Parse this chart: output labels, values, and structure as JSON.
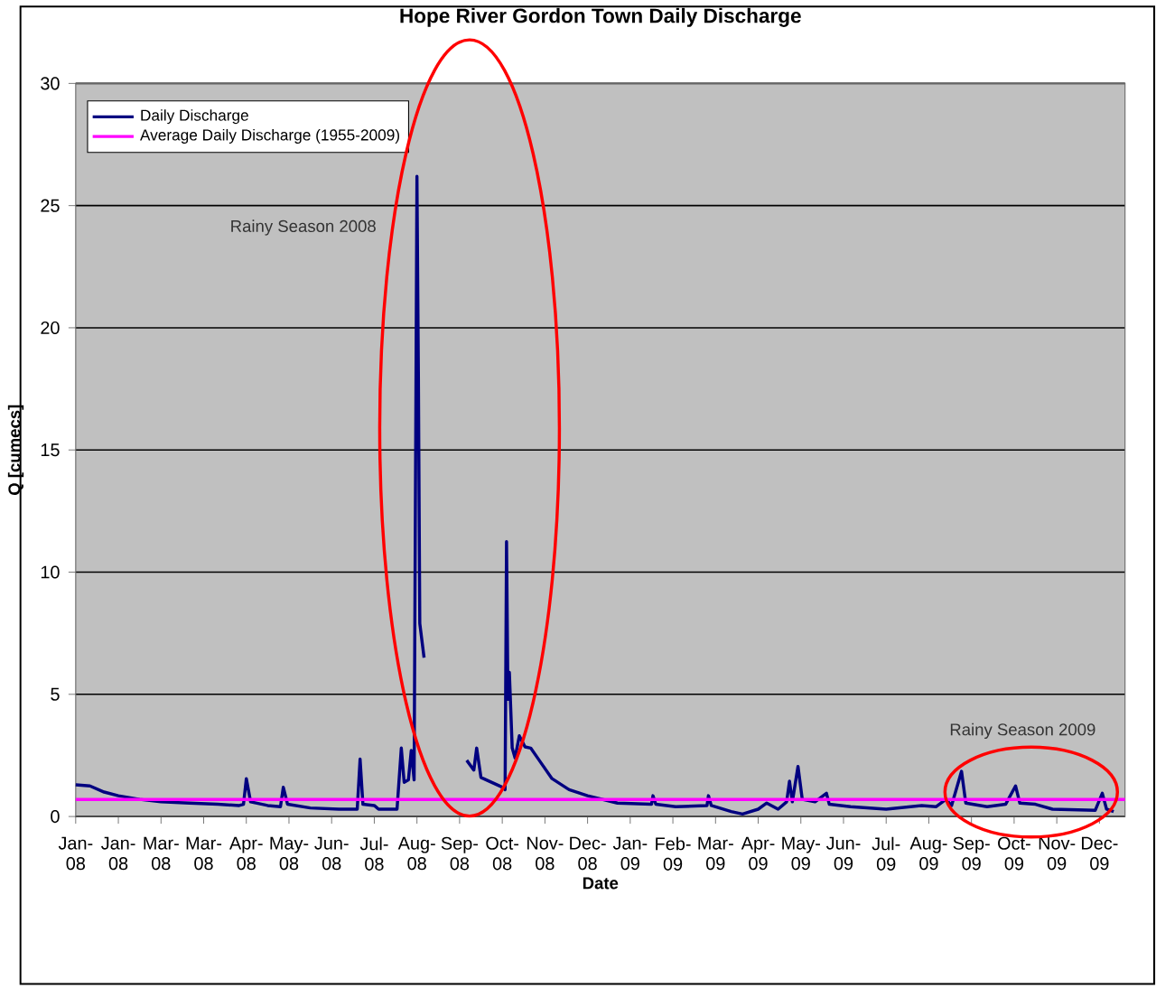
{
  "chart_data": {
    "type": "line",
    "title": "Hope River Gordon Town Daily Discharge",
    "xlabel": "Date",
    "ylabel": "Q [cumecs]",
    "annotations": [
      "Rainy Season 2008",
      "Rainy Season 2009"
    ],
    "series": [
      {
        "name": "Daily Discharge",
        "color": "#000080",
        "x": [
          "2008-01-01",
          "2008-01-11",
          "2008-01-21",
          "2008-01-31",
          "2008-02-15",
          "2008-03-01",
          "2008-03-21",
          "2008-04-10",
          "2008-04-25",
          "2008-04-28",
          "2008-04-30",
          "2008-05-03",
          "2008-05-15",
          "2008-05-24",
          "2008-05-26",
          "2008-05-29",
          "2008-06-14",
          "2008-07-04",
          "2008-07-17",
          "2008-07-19",
          "2008-07-21",
          "2008-07-29",
          "2008-08-01",
          "2008-08-14",
          "2008-08-17",
          "2008-08-19",
          "2008-08-22",
          "2008-08-24",
          "2008-08-26",
          "2008-08-28",
          "2008-08-29",
          "2008-08-30",
          "2008-09-02",
          "2008-09-17",
          "2008-10-02",
          "2008-10-07",
          "2008-10-09",
          "2008-10-12",
          "2008-10-27",
          "2008-10-29",
          "2008-10-30",
          "2008-10-31",
          "2008-11-01",
          "2008-11-03",
          "2008-11-05",
          "2008-11-08",
          "2008-11-12",
          "2008-11-16",
          "2008-11-22",
          "2008-12-01",
          "2008-12-13",
          "2008-12-26",
          "2009-01-16",
          "2009-02-09",
          "2009-02-10",
          "2009-02-12",
          "2009-02-26",
          "2009-03-20",
          "2009-03-21",
          "2009-03-23",
          "2009-04-06",
          "2009-04-14",
          "2009-04-25",
          "2009-05-01",
          "2009-05-09",
          "2009-05-15",
          "2009-05-17",
          "2009-05-19",
          "2009-05-23",
          "2009-05-26",
          "2009-06-04",
          "2009-06-12",
          "2009-06-14",
          "2009-06-29",
          "2009-07-24",
          "2009-08-18",
          "2009-08-28",
          "2009-09-04",
          "2009-09-08",
          "2009-09-15",
          "2009-09-18",
          "2009-10-03",
          "2009-10-16",
          "2009-10-23",
          "2009-10-26",
          "2009-11-06",
          "2009-11-18",
          "2009-12-18",
          "2009-12-23",
          "2009-12-26",
          "2009-12-31"
        ],
        "values": [
          1.3,
          1.25,
          1.0,
          0.85,
          0.7,
          0.6,
          0.55,
          0.5,
          0.45,
          0.5,
          1.55,
          0.6,
          0.45,
          0.4,
          1.2,
          0.5,
          0.35,
          0.3,
          0.3,
          2.35,
          0.5,
          0.45,
          0.3,
          0.3,
          2.8,
          1.4,
          1.5,
          2.7,
          1.5,
          26.2,
          18.2,
          7.9,
          6.5,
          null,
          2.3,
          1.9,
          2.8,
          1.6,
          1.2,
          1.1,
          11.25,
          4.8,
          5.9,
          2.8,
          2.4,
          3.3,
          2.85,
          2.8,
          2.3,
          1.55,
          1.1,
          0.85,
          0.55,
          0.5,
          0.85,
          0.5,
          0.4,
          0.45,
          0.85,
          0.45,
          0.2,
          0.1,
          0.3,
          0.55,
          0.3,
          0.6,
          1.45,
          0.6,
          2.05,
          0.7,
          0.6,
          0.95,
          0.5,
          0.4,
          0.3,
          0.45,
          0.4,
          0.7,
          0.45,
          1.85,
          0.55,
          0.4,
          0.5,
          1.25,
          0.55,
          0.5,
          0.3,
          0.25,
          0.95,
          0.3,
          0.2
        ]
      }
    ],
    "ref_lines": [
      {
        "axis": "y",
        "value": 0.7,
        "label": "Average Daily Discharge (1955-2009)",
        "color": "#ff00ff"
      }
    ],
    "xlim": [
      "2008-01-01",
      "2010-01-08"
    ],
    "xticks": [
      {
        "value": "2008-01-01",
        "label": "Jan-08"
      },
      {
        "value": "2008-01-31",
        "label": "Jan-08"
      },
      {
        "value": "2008-03-01",
        "label": "Mar-08"
      },
      {
        "value": "2008-03-31",
        "label": "Mar-08"
      },
      {
        "value": "2008-04-30",
        "label": "Apr-08"
      },
      {
        "value": "2008-05-30",
        "label": "May-08"
      },
      {
        "value": "2008-06-29",
        "label": "Jun-08"
      },
      {
        "value": "2008-07-29",
        "label": "Jul-08"
      },
      {
        "value": "2008-08-28",
        "label": "Aug-08"
      },
      {
        "value": "2008-09-27",
        "label": "Sep-08"
      },
      {
        "value": "2008-10-27",
        "label": "Oct-08"
      },
      {
        "value": "2008-11-26",
        "label": "Nov-08"
      },
      {
        "value": "2008-12-26",
        "label": "Dec-08"
      },
      {
        "value": "2009-01-25",
        "label": "Jan-09"
      },
      {
        "value": "2009-02-24",
        "label": "Feb-09"
      },
      {
        "value": "2009-03-26",
        "label": "Mar-09"
      },
      {
        "value": "2009-04-25",
        "label": "Apr-09"
      },
      {
        "value": "2009-05-25",
        "label": "May-09"
      },
      {
        "value": "2009-06-24",
        "label": "Jun-09"
      },
      {
        "value": "2009-07-24",
        "label": "Jul-09"
      },
      {
        "value": "2009-08-23",
        "label": "Aug-09"
      },
      {
        "value": "2009-09-22",
        "label": "Sep-09"
      },
      {
        "value": "2009-10-22",
        "label": "Oct-09"
      },
      {
        "value": "2009-11-21",
        "label": "Nov-09"
      },
      {
        "value": "2009-12-21",
        "label": "Dec-09"
      }
    ],
    "ylim": [
      0,
      30
    ],
    "yticks": [
      0,
      5,
      10,
      15,
      20,
      25,
      30
    ],
    "grid": "y",
    "legend": "top left",
    "marker": "none",
    "line_style": "solid"
  }
}
